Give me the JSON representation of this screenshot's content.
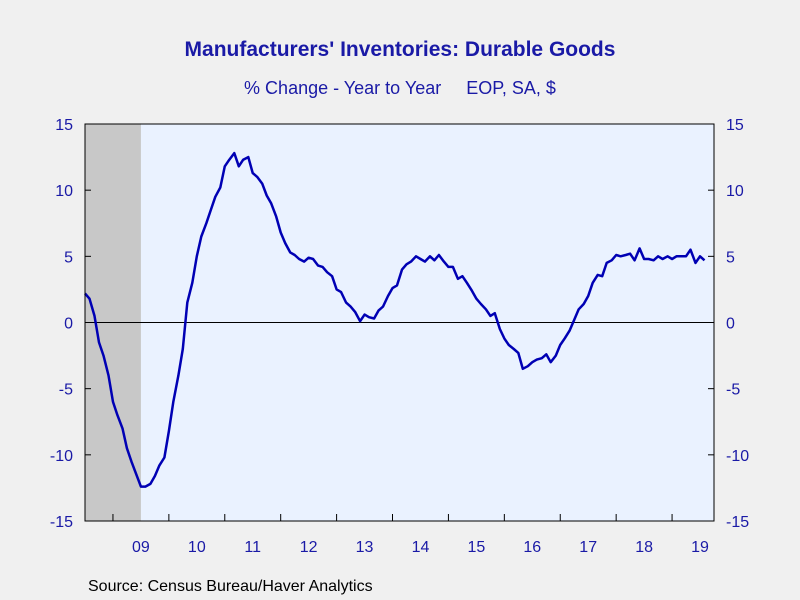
{
  "chart_data": {
    "type": "line",
    "title": "Manufacturers' Inventories: Durable Goods",
    "subtitle": "% Change - Year to Year     EOP, SA, $",
    "source": "Source:  Census Bureau/Haver Analytics",
    "xlabel": "",
    "ylabel": "",
    "ylim": [
      -15,
      15
    ],
    "y_ticks": [
      15,
      10,
      5,
      0,
      -5,
      -10,
      -15
    ],
    "x_tick_labels": [
      "09",
      "10",
      "11",
      "12",
      "13",
      "14",
      "15",
      "16",
      "17",
      "18",
      "19"
    ],
    "x_range": [
      2008.5,
      2019.75
    ],
    "grid": false,
    "zero_line": true,
    "recession_shading": {
      "start": 2008.5,
      "end": 2009.5
    },
    "colors": {
      "line": "#0000b4",
      "text": "#1a1aa6",
      "plot_bg": "#eaf2ff",
      "recession": "#c8c8c8"
    },
    "series": [
      {
        "points": [
          [
            2008.5,
            2.2
          ],
          [
            2008.58,
            1.8
          ],
          [
            2008.67,
            0.5
          ],
          [
            2008.75,
            -1.5
          ],
          [
            2008.83,
            -2.5
          ],
          [
            2008.92,
            -4.0
          ],
          [
            2009.0,
            -6.0
          ],
          [
            2009.08,
            -7.0
          ],
          [
            2009.17,
            -8.0
          ],
          [
            2009.25,
            -9.5
          ],
          [
            2009.33,
            -10.5
          ],
          [
            2009.42,
            -11.5
          ],
          [
            2009.5,
            -12.4
          ],
          [
            2009.58,
            -12.4
          ],
          [
            2009.67,
            -12.2
          ],
          [
            2009.75,
            -11.6
          ],
          [
            2009.83,
            -10.8
          ],
          [
            2009.92,
            -10.2
          ],
          [
            2010.0,
            -8.2
          ],
          [
            2010.08,
            -6.0
          ],
          [
            2010.17,
            -4.0
          ],
          [
            2010.25,
            -2.0
          ],
          [
            2010.33,
            1.5
          ],
          [
            2010.42,
            3.0
          ],
          [
            2010.5,
            5.0
          ],
          [
            2010.58,
            6.5
          ],
          [
            2010.67,
            7.5
          ],
          [
            2010.75,
            8.5
          ],
          [
            2010.83,
            9.5
          ],
          [
            2010.92,
            10.2
          ],
          [
            2011.0,
            11.8
          ],
          [
            2011.08,
            12.3
          ],
          [
            2011.17,
            12.8
          ],
          [
            2011.25,
            11.8
          ],
          [
            2011.33,
            12.3
          ],
          [
            2011.42,
            12.5
          ],
          [
            2011.5,
            11.3
          ],
          [
            2011.58,
            11.0
          ],
          [
            2011.67,
            10.5
          ],
          [
            2011.75,
            9.6
          ],
          [
            2011.83,
            9.0
          ],
          [
            2011.92,
            8.0
          ],
          [
            2012.0,
            6.8
          ],
          [
            2012.08,
            6.0
          ],
          [
            2012.17,
            5.3
          ],
          [
            2012.25,
            5.1
          ],
          [
            2012.33,
            4.8
          ],
          [
            2012.42,
            4.6
          ],
          [
            2012.5,
            4.9
          ],
          [
            2012.58,
            4.8
          ],
          [
            2012.67,
            4.3
          ],
          [
            2012.75,
            4.2
          ],
          [
            2012.83,
            3.8
          ],
          [
            2012.92,
            3.5
          ],
          [
            2013.0,
            2.5
          ],
          [
            2013.08,
            2.3
          ],
          [
            2013.17,
            1.5
          ],
          [
            2013.25,
            1.2
          ],
          [
            2013.33,
            0.8
          ],
          [
            2013.42,
            0.1
          ],
          [
            2013.5,
            0.6
          ],
          [
            2013.58,
            0.4
          ],
          [
            2013.67,
            0.3
          ],
          [
            2013.75,
            0.9
          ],
          [
            2013.83,
            1.2
          ],
          [
            2013.92,
            2.0
          ],
          [
            2014.0,
            2.6
          ],
          [
            2014.08,
            2.8
          ],
          [
            2014.17,
            4.0
          ],
          [
            2014.25,
            4.4
          ],
          [
            2014.33,
            4.6
          ],
          [
            2014.42,
            5.0
          ],
          [
            2014.5,
            4.8
          ],
          [
            2014.58,
            4.6
          ],
          [
            2014.67,
            5.0
          ],
          [
            2014.75,
            4.7
          ],
          [
            2014.83,
            5.1
          ],
          [
            2014.92,
            4.6
          ],
          [
            2015.0,
            4.2
          ],
          [
            2015.08,
            4.2
          ],
          [
            2015.17,
            3.3
          ],
          [
            2015.25,
            3.5
          ],
          [
            2015.33,
            3.0
          ],
          [
            2015.42,
            2.4
          ],
          [
            2015.5,
            1.8
          ],
          [
            2015.58,
            1.4
          ],
          [
            2015.67,
            1.0
          ],
          [
            2015.75,
            0.5
          ],
          [
            2015.83,
            0.7
          ],
          [
            2015.92,
            -0.5
          ],
          [
            2016.0,
            -1.2
          ],
          [
            2016.08,
            -1.7
          ],
          [
            2016.17,
            -2.0
          ],
          [
            2016.25,
            -2.3
          ],
          [
            2016.33,
            -3.5
          ],
          [
            2016.42,
            -3.3
          ],
          [
            2016.5,
            -3.0
          ],
          [
            2016.58,
            -2.8
          ],
          [
            2016.67,
            -2.7
          ],
          [
            2016.75,
            -2.4
          ],
          [
            2016.83,
            -3.0
          ],
          [
            2016.92,
            -2.5
          ],
          [
            2017.0,
            -1.7
          ],
          [
            2017.08,
            -1.2
          ],
          [
            2017.17,
            -0.6
          ],
          [
            2017.25,
            0.2
          ],
          [
            2017.33,
            1.0
          ],
          [
            2017.42,
            1.4
          ],
          [
            2017.5,
            2.0
          ],
          [
            2017.58,
            3.0
          ],
          [
            2017.67,
            3.6
          ],
          [
            2017.75,
            3.5
          ],
          [
            2017.83,
            4.5
          ],
          [
            2017.92,
            4.7
          ],
          [
            2018.0,
            5.1
          ],
          [
            2018.08,
            5.0
          ],
          [
            2018.17,
            5.1
          ],
          [
            2018.25,
            5.2
          ],
          [
            2018.33,
            4.7
          ],
          [
            2018.42,
            5.6
          ],
          [
            2018.5,
            4.8
          ],
          [
            2018.58,
            4.8
          ],
          [
            2018.67,
            4.7
          ],
          [
            2018.75,
            5.0
          ],
          [
            2018.83,
            4.8
          ],
          [
            2018.92,
            5.0
          ],
          [
            2019.0,
            4.8
          ],
          [
            2019.08,
            5.0
          ],
          [
            2019.17,
            5.0
          ],
          [
            2019.25,
            5.0
          ],
          [
            2019.33,
            5.5
          ],
          [
            2019.42,
            4.5
          ],
          [
            2019.5,
            5.0
          ],
          [
            2019.58,
            4.7
          ]
        ]
      }
    ]
  }
}
